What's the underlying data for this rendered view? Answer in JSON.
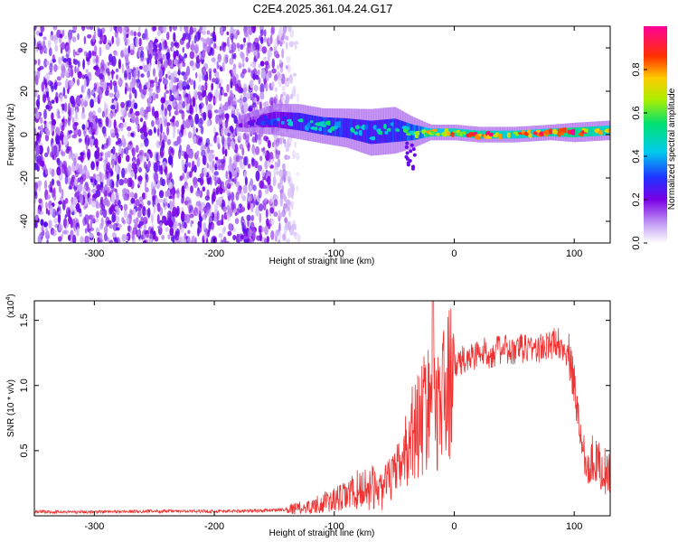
{
  "title": "C2E4.2025.361.04.24.G17",
  "chart_data": [
    {
      "type": "heatmap",
      "name": "spectrogram",
      "xlabel": "Height of straight line (km)",
      "ylabel": "Frequency (Hz)",
      "xlim": [
        -350,
        130
      ],
      "ylim": [
        -50,
        50
      ],
      "xticks": [
        -300,
        -200,
        -100,
        0,
        100
      ],
      "xtick_labels": [
        "-300",
        "-200",
        "-100",
        "0",
        "100"
      ],
      "yticks": [
        -40,
        -20,
        0,
        20,
        40
      ],
      "ytick_labels": [
        "-40",
        "-20",
        "0",
        "20",
        "40"
      ],
      "noise_region_km": [
        -350,
        -140
      ],
      "signal_band": [
        {
          "x": -180,
          "center_hz": 5,
          "width_hz": 4,
          "amp": 0.15
        },
        {
          "x": -150,
          "center_hz": 7,
          "width_hz": 8,
          "amp": 0.3
        },
        {
          "x": -130,
          "center_hz": 6,
          "width_hz": 9,
          "amp": 0.4
        },
        {
          "x": -110,
          "center_hz": 4,
          "width_hz": 9,
          "amp": 0.45
        },
        {
          "x": -90,
          "center_hz": 3,
          "width_hz": 10,
          "amp": 0.45
        },
        {
          "x": -70,
          "center_hz": 1,
          "width_hz": 12,
          "amp": 0.4
        },
        {
          "x": -50,
          "center_hz": 2,
          "width_hz": 12,
          "amp": 0.45
        },
        {
          "x": -35,
          "center_hz": 1,
          "width_hz": 8,
          "amp": 0.5
        },
        {
          "x": -20,
          "center_hz": 1,
          "width_hz": 4,
          "amp": 0.7
        },
        {
          "x": 0,
          "center_hz": 1,
          "width_hz": 4,
          "amp": 0.75
        },
        {
          "x": 20,
          "center_hz": 0,
          "width_hz": 4,
          "amp": 0.8
        },
        {
          "x": 50,
          "center_hz": 0,
          "width_hz": 4,
          "amp": 0.75
        },
        {
          "x": 80,
          "center_hz": 1,
          "width_hz": 4,
          "amp": 0.75
        },
        {
          "x": 100,
          "center_hz": 1,
          "width_hz": 5,
          "amp": 0.9
        },
        {
          "x": 130,
          "center_hz": 2,
          "width_hz": 5,
          "amp": 0.7
        }
      ],
      "colorbar": {
        "label": "Normalized spectral amplitude",
        "range": [
          0,
          1
        ],
        "ticks": [
          0,
          0.2,
          0.4,
          0.6,
          0.8
        ],
        "tick_labels": [
          "0.0",
          "0.2",
          "0.4",
          "0.6",
          "0.8"
        ]
      }
    },
    {
      "type": "line",
      "name": "snr",
      "xlabel": "Height of straight line (km)",
      "ylabel": "SNR (10 * v/v)",
      "multiplier_label": "(x10",
      "multiplier_exp": "4",
      "multiplier_close": ")",
      "xlim": [
        -350,
        130
      ],
      "ylim": [
        0,
        1.65
      ],
      "xticks": [
        -300,
        -200,
        -100,
        0,
        100
      ],
      "xtick_labels": [
        "-300",
        "-200",
        "-100",
        "0",
        "100"
      ],
      "yticks": [
        0.5,
        1.0,
        1.5
      ],
      "ytick_labels": [
        "0.5",
        "1.0",
        "1.5"
      ],
      "color": "#ee3333",
      "x": [
        -350,
        -300,
        -250,
        -200,
        -160,
        -140,
        -120,
        -110,
        -100,
        -90,
        -80,
        -70,
        -60,
        -55,
        -50,
        -45,
        -40,
        -35,
        -30,
        -25,
        -20,
        -18,
        -15,
        -10,
        -5,
        0,
        10,
        20,
        30,
        40,
        50,
        60,
        70,
        80,
        85,
        90,
        95,
        100,
        105,
        110,
        115,
        120,
        125,
        130
      ],
      "y": [
        0.03,
        0.03,
        0.035,
        0.035,
        0.04,
        0.05,
        0.07,
        0.1,
        0.12,
        0.15,
        0.2,
        0.22,
        0.2,
        0.28,
        0.3,
        0.4,
        0.5,
        0.65,
        0.7,
        0.8,
        0.9,
        1.6,
        0.85,
        0.9,
        1.0,
        1.15,
        1.2,
        1.25,
        1.25,
        1.28,
        1.25,
        1.3,
        1.28,
        1.3,
        1.35,
        1.3,
        1.25,
        1.0,
        0.65,
        0.4,
        0.45,
        0.4,
        0.35,
        0.3
      ]
    }
  ]
}
